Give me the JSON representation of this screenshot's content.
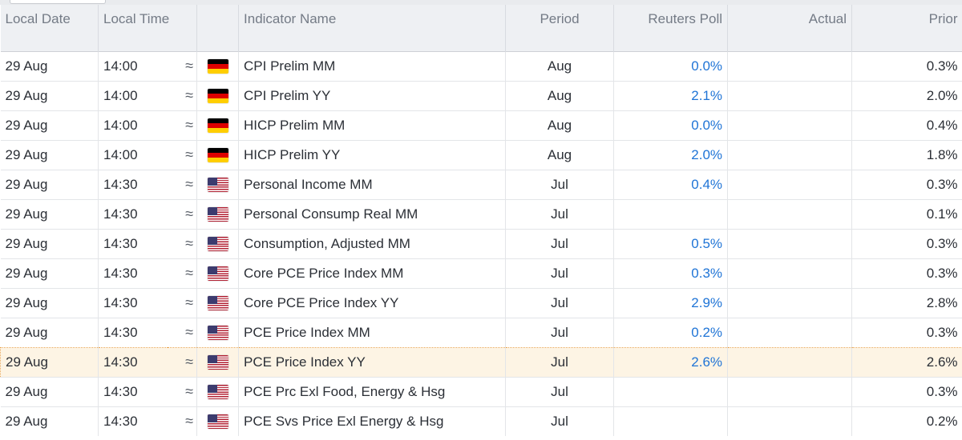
{
  "columns": {
    "date": "Local Date",
    "time": "Local Time",
    "name": "Indicator Name",
    "period": "Period",
    "poll": "Reuters Poll",
    "actual": "Actual",
    "prior": "Prior"
  },
  "volatility_icon": "≈",
  "flag_colors": {
    "germany": [
      "#000000",
      "#dd0000",
      "#ffce00"
    ],
    "usa": [
      "#b22234",
      "#ffffff",
      "#3c3b6e"
    ]
  },
  "highlight_color": "#fdf4e4",
  "rows": [
    {
      "date": "29 Aug",
      "time": "14:00",
      "flag": "germany-flag-icon",
      "name": "CPI Prelim MM",
      "period": "Aug",
      "poll": "0.0%",
      "actual": "",
      "prior": "0.3%"
    },
    {
      "date": "29 Aug",
      "time": "14:00",
      "flag": "germany-flag-icon",
      "name": "CPI Prelim YY",
      "period": "Aug",
      "poll": "2.1%",
      "actual": "",
      "prior": "2.0%"
    },
    {
      "date": "29 Aug",
      "time": "14:00",
      "flag": "germany-flag-icon",
      "name": "HICP Prelim MM",
      "period": "Aug",
      "poll": "0.0%",
      "actual": "",
      "prior": "0.4%"
    },
    {
      "date": "29 Aug",
      "time": "14:00",
      "flag": "germany-flag-icon",
      "name": "HICP Prelim YY",
      "period": "Aug",
      "poll": "2.0%",
      "actual": "",
      "prior": "1.8%"
    },
    {
      "date": "29 Aug",
      "time": "14:30",
      "flag": "us-flag-icon",
      "name": "Personal Income MM",
      "period": "Jul",
      "poll": "0.4%",
      "actual": "",
      "prior": "0.3%"
    },
    {
      "date": "29 Aug",
      "time": "14:30",
      "flag": "us-flag-icon",
      "name": "Personal Consump Real MM",
      "period": "Jul",
      "poll": "",
      "actual": "",
      "prior": "0.1%"
    },
    {
      "date": "29 Aug",
      "time": "14:30",
      "flag": "us-flag-icon",
      "name": "Consumption, Adjusted MM",
      "period": "Jul",
      "poll": "0.5%",
      "actual": "",
      "prior": "0.3%"
    },
    {
      "date": "29 Aug",
      "time": "14:30",
      "flag": "us-flag-icon",
      "name": "Core PCE Price Index MM",
      "period": "Jul",
      "poll": "0.3%",
      "actual": "",
      "prior": "0.3%"
    },
    {
      "date": "29 Aug",
      "time": "14:30",
      "flag": "us-flag-icon",
      "name": "Core PCE Price Index YY",
      "period": "Jul",
      "poll": "2.9%",
      "actual": "",
      "prior": "2.8%"
    },
    {
      "date": "29 Aug",
      "time": "14:30",
      "flag": "us-flag-icon",
      "name": "PCE Price Index MM",
      "period": "Jul",
      "poll": "0.2%",
      "actual": "",
      "prior": "0.3%"
    },
    {
      "date": "29 Aug",
      "time": "14:30",
      "flag": "us-flag-icon",
      "name": "PCE Price Index YY",
      "period": "Jul",
      "poll": "2.6%",
      "actual": "",
      "prior": "2.6%",
      "highlighted": true
    },
    {
      "date": "29 Aug",
      "time": "14:30",
      "flag": "us-flag-icon",
      "name": "PCE Prc Exl Food, Energy & Hsg",
      "period": "Jul",
      "poll": "",
      "actual": "",
      "prior": "0.3%"
    },
    {
      "date": "29 Aug",
      "time": "14:30",
      "flag": "us-flag-icon",
      "name": "PCE Svs Price Exl Energy & Hsg",
      "period": "Jul",
      "poll": "",
      "actual": "",
      "prior": "0.2%"
    }
  ]
}
